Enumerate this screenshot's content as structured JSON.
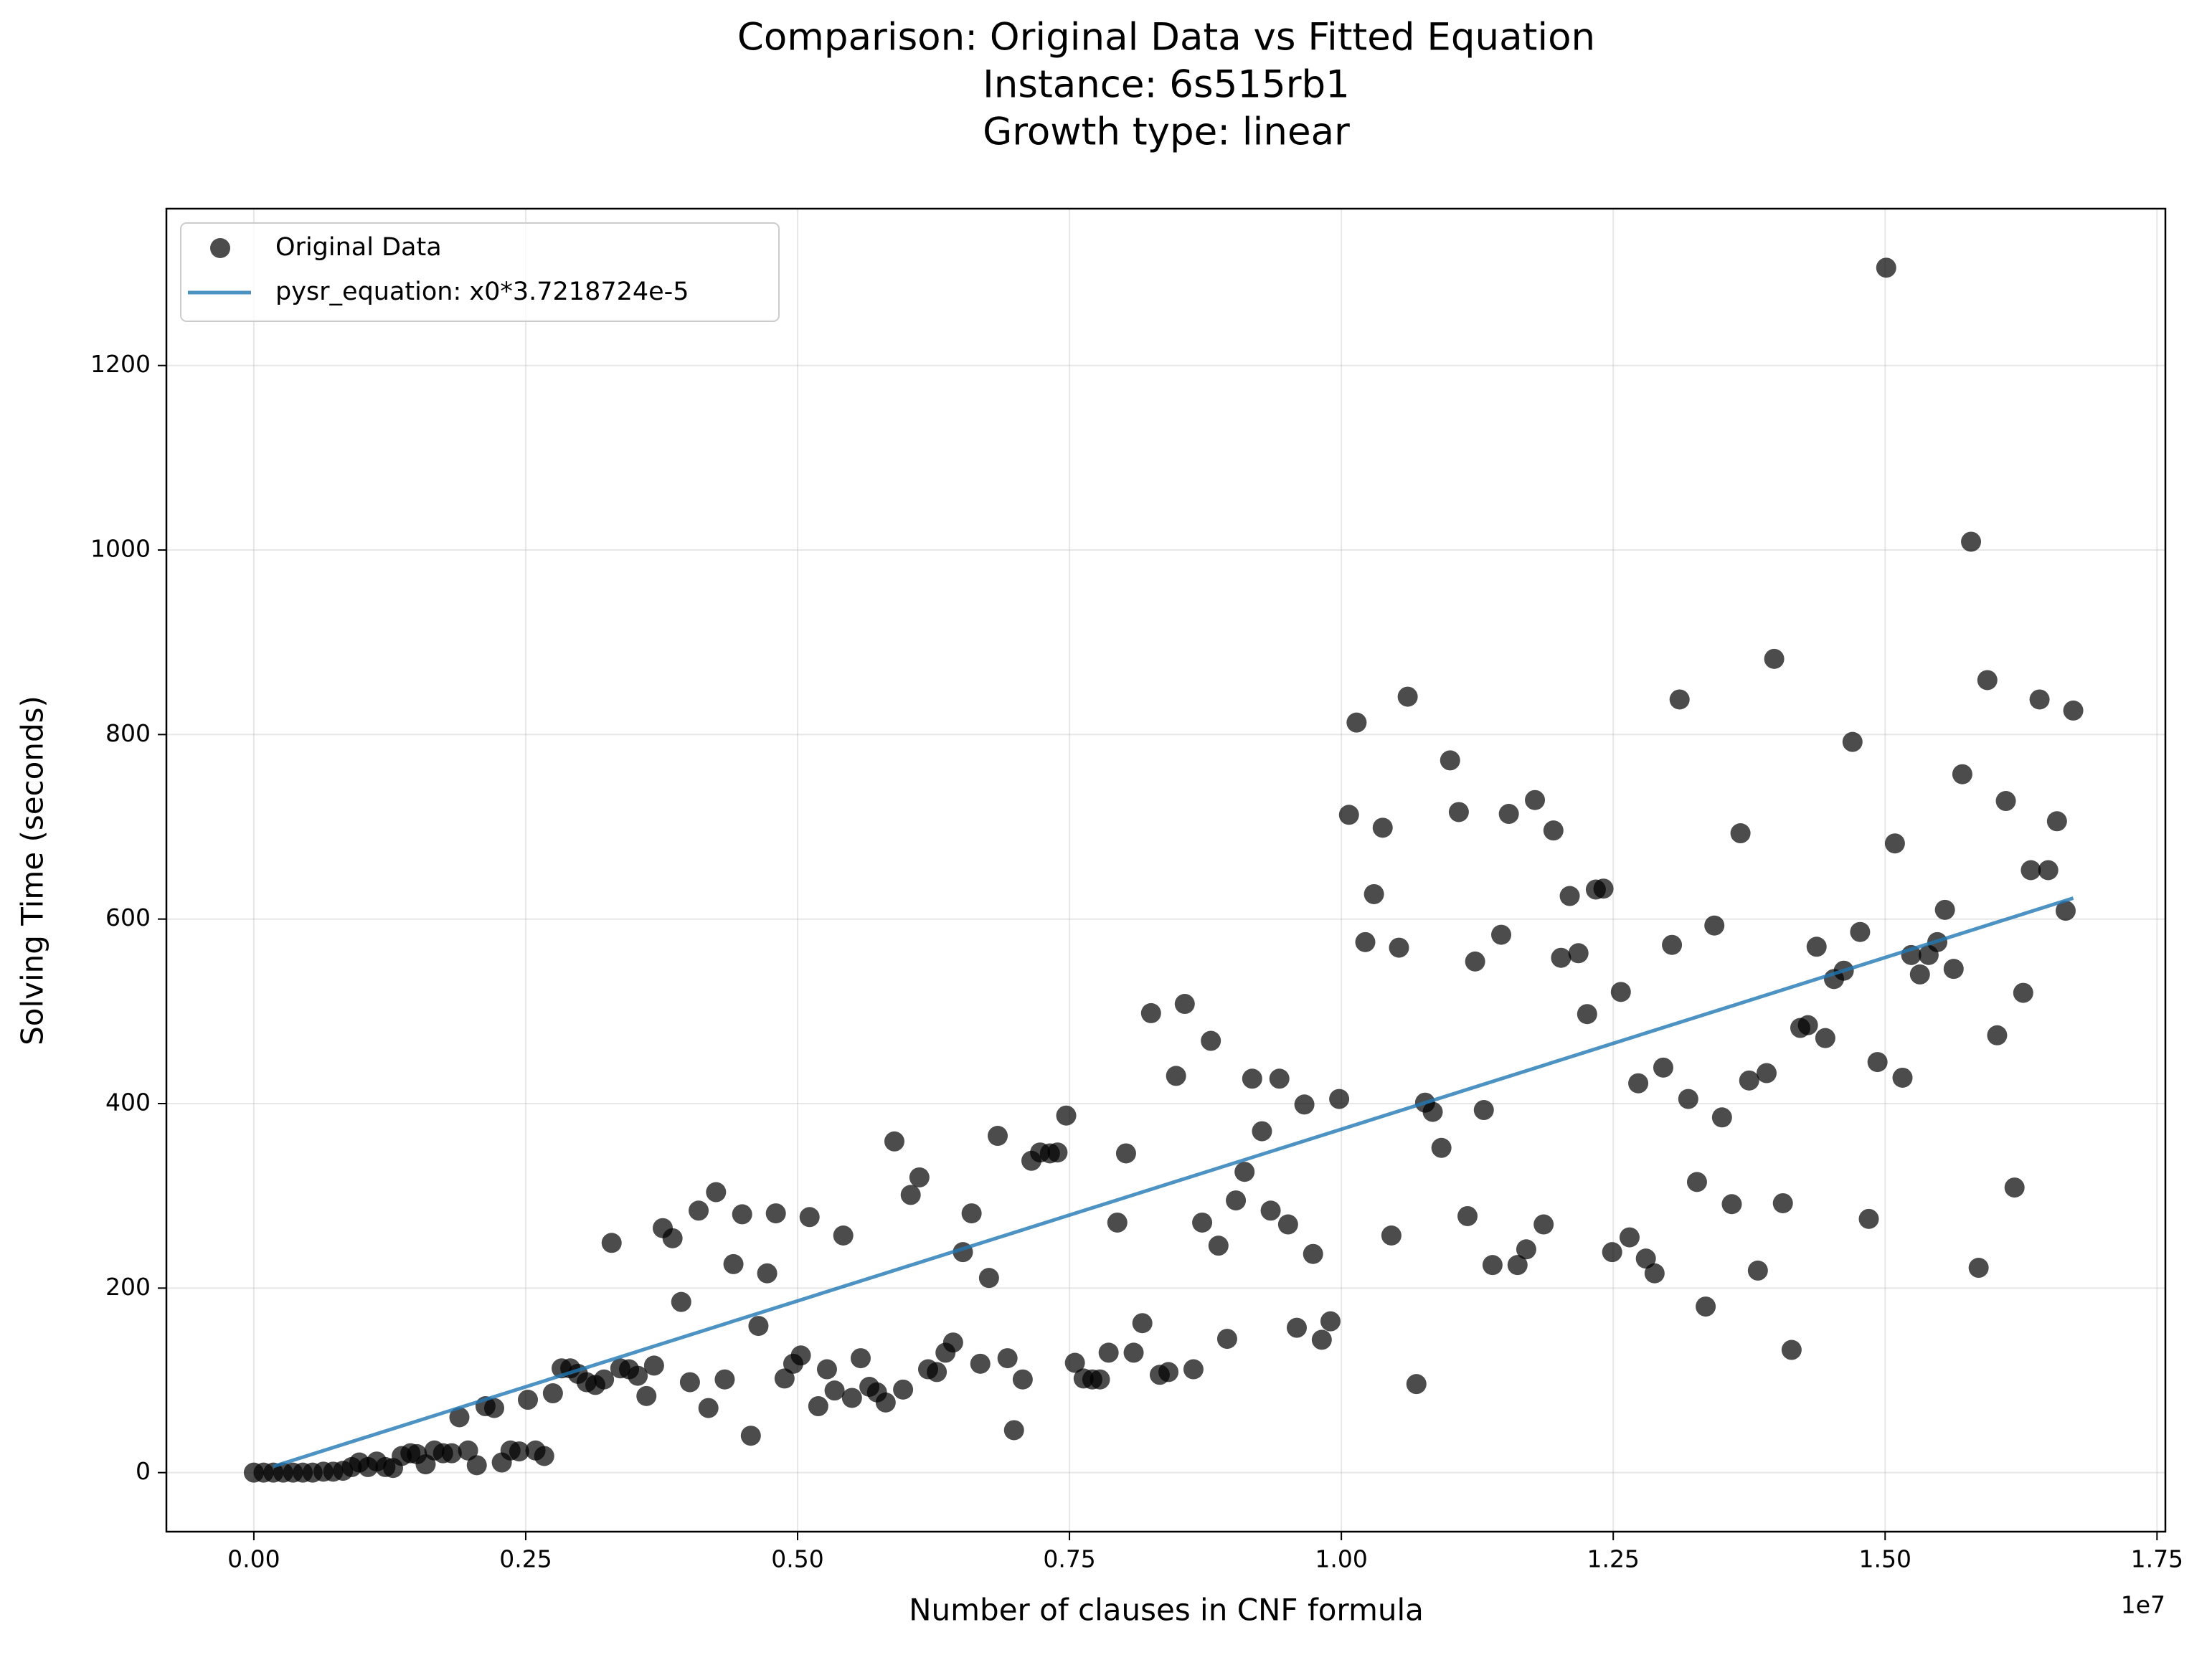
{
  "chart_data": {
    "type": "scatter",
    "title": [
      "Comparison: Original Data vs Fitted Equation",
      "Instance: 6s515rb1",
      "Growth type: linear"
    ],
    "x_label": "Number of clauses in CNF formula",
    "y_label": "Solving Time (seconds)",
    "x_offset_label": "1e7",
    "xlim": [
      -804000,
      17577000
    ],
    "ylim": [
      -64,
      1370
    ],
    "xticks": [
      {
        "value": 0,
        "label": "0.00"
      },
      {
        "value": 2500000,
        "label": "0.25"
      },
      {
        "value": 5000000,
        "label": "0.50"
      },
      {
        "value": 7500000,
        "label": "0.75"
      },
      {
        "value": 10000000,
        "label": "1.00"
      },
      {
        "value": 12500000,
        "label": "1.25"
      },
      {
        "value": 15000000,
        "label": "1.50"
      },
      {
        "value": 17500000,
        "label": "1.75"
      }
    ],
    "yticks": [
      0,
      200,
      400,
      600,
      800,
      1000,
      1200
    ],
    "grid": true,
    "legend": "upper left",
    "series": [
      {
        "name": "Original Data",
        "type": "scatter",
        "color": "#000000",
        "x": [
          0,
          90000,
          180000,
          270000,
          360000,
          450000,
          540000,
          640000,
          730000,
          820000,
          900000,
          970000,
          1050000,
          1130000,
          1210000,
          1280000,
          1360000,
          1440000,
          1500000,
          1580000,
          1660000,
          1740000,
          1820000,
          1890000,
          1970000,
          2050000,
          2130000,
          2210000,
          2280000,
          2360000,
          2440000,
          2520000,
          2590000,
          2670000,
          2750000,
          2830000,
          2910000,
          2980000,
          3060000,
          3140000,
          3220000,
          3290000,
          3370000,
          3450000,
          3530000,
          3610000,
          3680000,
          3760000,
          3850000,
          3930000,
          4010000,
          4090000,
          4180000,
          4250000,
          4330000,
          4410000,
          4490000,
          4570000,
          4640000,
          4720000,
          4800000,
          4880000,
          4960000,
          5030000,
          5110000,
          5190000,
          5270000,
          5340000,
          5420000,
          5500000,
          5580000,
          5660000,
          5730000,
          5810000,
          5890000,
          5970000,
          6040000,
          6120000,
          6200000,
          6280000,
          6360000,
          6430000,
          6520000,
          6600000,
          6680000,
          6760000,
          6840000,
          6930000,
          6990000,
          7070000,
          7150000,
          7230000,
          7320000,
          7390000,
          7470000,
          7550000,
          7630000,
          7710000,
          7780000,
          7860000,
          7940000,
          8020000,
          8090000,
          8170000,
          8250000,
          8330000,
          8410000,
          8480000,
          8560000,
          8640000,
          8720000,
          8800000,
          8870000,
          8950000,
          9030000,
          9110000,
          9180000,
          9270000,
          9350000,
          9430000,
          9510000,
          9590000,
          9660000,
          9740000,
          9820000,
          9900000,
          9980000,
          10070000,
          10140000,
          10220000,
          10300000,
          10380000,
          10460000,
          10530000,
          10610000,
          10690000,
          10770000,
          10840000,
          10920000,
          11000000,
          11080000,
          11160000,
          11230000,
          11310000,
          11390000,
          11470000,
          11540000,
          11620000,
          11700000,
          11780000,
          11860000,
          11950000,
          12020000,
          12100000,
          12180000,
          12260000,
          12340000,
          12410000,
          12490000,
          12570000,
          12650000,
          12730000,
          12800000,
          12880000,
          12960000,
          13040000,
          13110000,
          13190000,
          13270000,
          13350000,
          13430000,
          13500000,
          13590000,
          13670000,
          13750000,
          13830000,
          13910000,
          13980000,
          14060000,
          14140000,
          14220000,
          14290000,
          14370000,
          14450000,
          14530000,
          14620000,
          14700000,
          14770000,
          14850000,
          14930000,
          15010000,
          15090000,
          15160000,
          15240000,
          15320000,
          15400000,
          15480000,
          15550000,
          15630000,
          15710000,
          15790000,
          15860000,
          15940000,
          16030000,
          16110000,
          16190000,
          16270000,
          16340000,
          16420000,
          16500000,
          16580000,
          16660000,
          16730000
        ],
        "values": [
          0,
          0,
          0,
          0,
          0,
          0,
          0,
          1,
          1,
          2,
          6,
          11,
          6,
          12,
          6,
          5,
          18,
          21,
          20,
          9,
          24,
          21,
          21,
          60,
          24,
          8,
          72,
          70,
          11,
          24,
          23,
          79,
          24,
          18,
          86,
          113,
          113,
          107,
          98,
          95,
          101,
          249,
          113,
          112,
          105,
          83,
          116,
          265,
          254,
          185,
          98,
          284,
          70,
          304,
          101,
          226,
          280,
          40,
          159,
          216,
          281,
          102,
          118,
          127,
          277,
          72,
          112,
          89,
          257,
          81,
          124,
          93,
          87,
          76,
          359,
          90,
          301,
          320,
          112,
          109,
          130,
          141,
          239,
          281,
          118,
          211,
          365,
          124,
          46,
          101,
          338,
          347,
          346,
          347,
          387,
          119,
          102,
          101,
          101,
          130,
          271,
          346,
          130,
          162,
          498,
          106,
          109,
          430,
          508,
          112,
          271,
          468,
          246,
          145,
          295,
          326,
          427,
          370,
          284,
          427,
          269,
          157,
          399,
          237,
          144,
          164,
          405,
          713,
          813,
          575,
          627,
          699,
          257,
          569,
          841,
          96,
          401,
          391,
          352,
          772,
          716,
          278,
          554,
          393,
          225,
          583,
          714,
          225,
          242,
          729,
          269,
          696,
          558,
          625,
          563,
          497,
          632,
          633,
          239,
          521,
          255,
          422,
          232,
          216,
          439,
          572,
          838,
          405,
          315,
          180,
          593,
          385,
          291,
          693,
          425,
          219,
          433,
          882,
          292,
          133,
          482,
          485,
          570,
          471,
          535,
          544,
          792,
          586,
          275,
          445,
          1306,
          682,
          428,
          561,
          540,
          561,
          575,
          610,
          546,
          757,
          1009,
          222,
          859,
          474,
          728,
          309,
          520,
          653,
          838,
          653,
          706,
          609,
          826
        ]
      },
      {
        "name": "pysr_equation: x0*3.7218724e-5",
        "type": "line",
        "color": "#1f77b4",
        "x": [
          180000,
          16730000
        ],
        "values": [
          6.7,
          622.7
        ]
      }
    ]
  }
}
